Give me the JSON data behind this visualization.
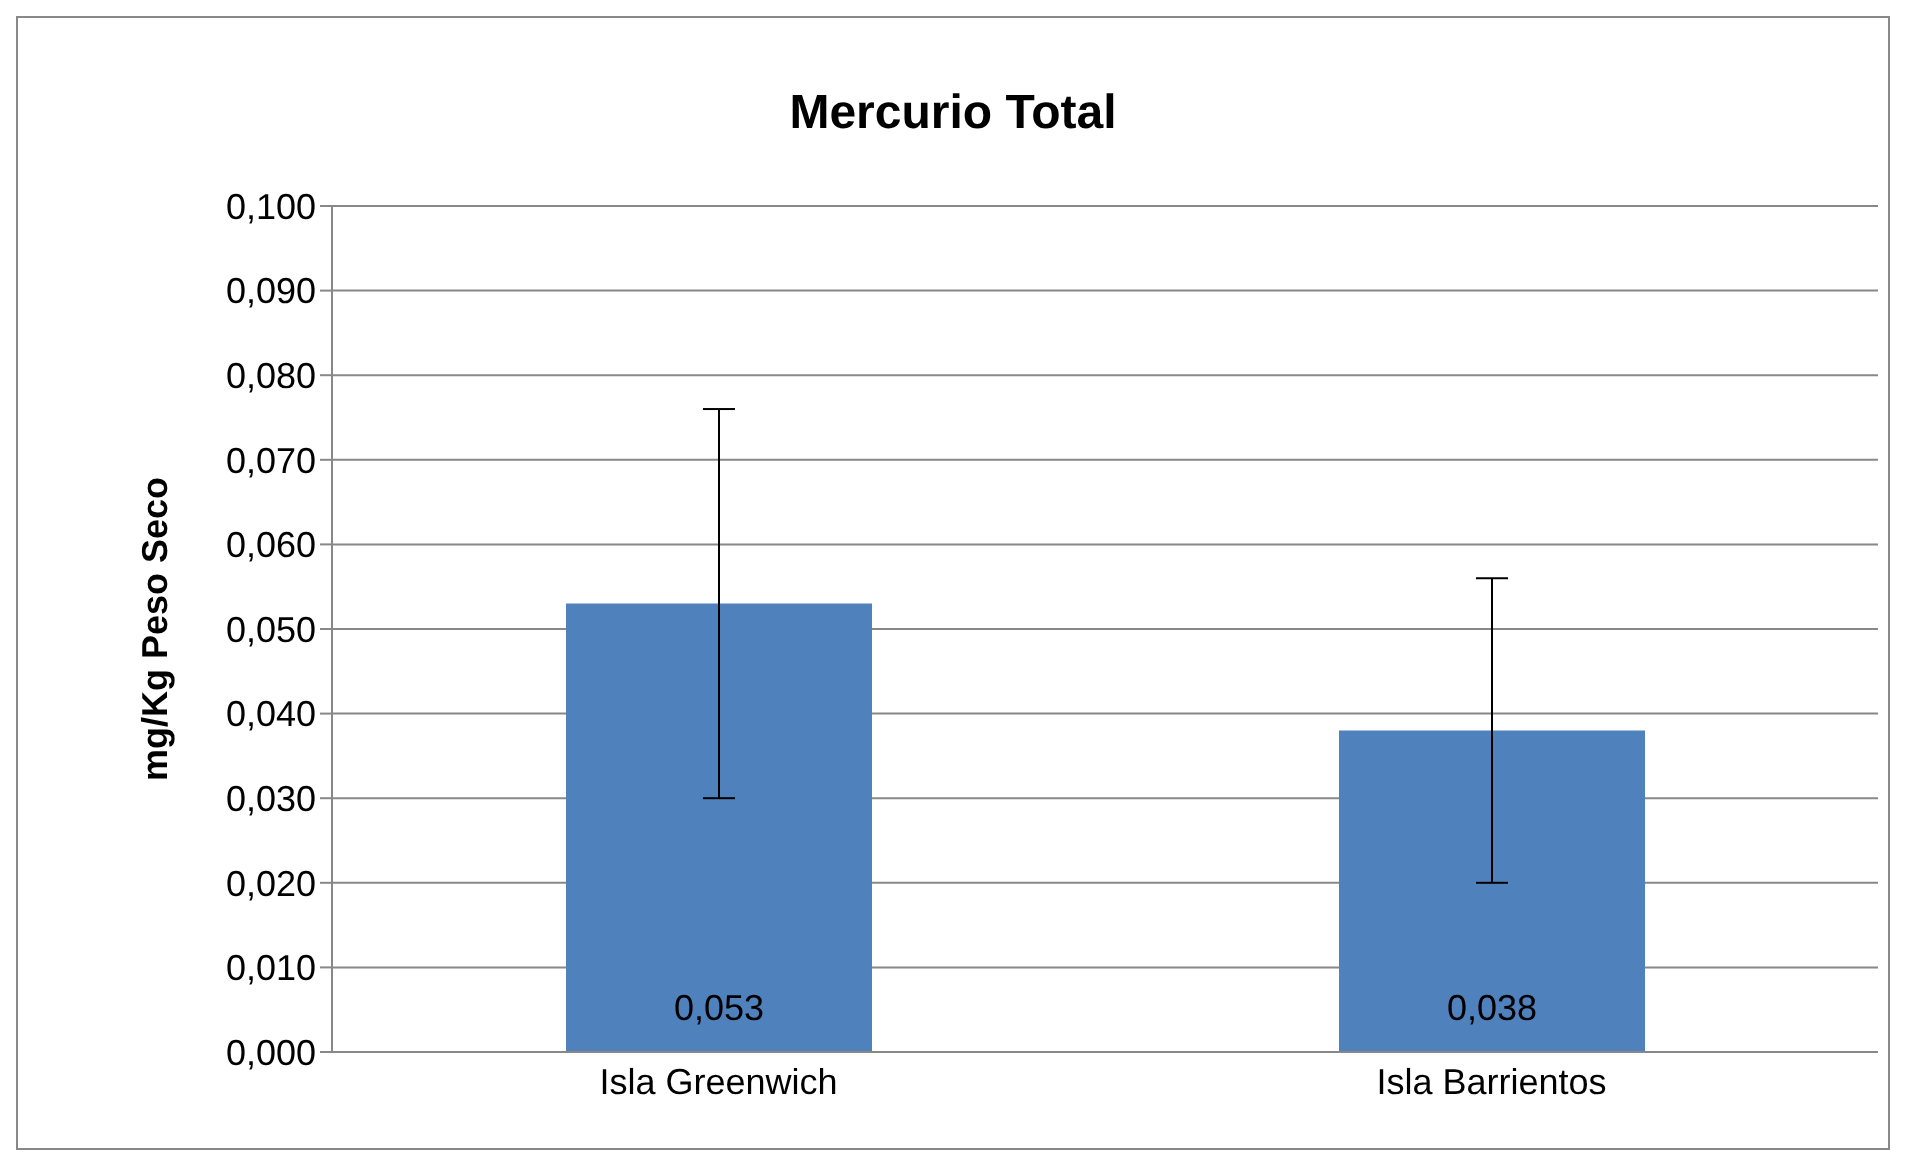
{
  "chart_data": {
    "type": "bar",
    "title": "Mercurio Total",
    "ylabel": "mg/Kg  Peso Seco",
    "categories": [
      "Isla Greenwich",
      "Isla Barrientos"
    ],
    "values": [
      0.053,
      0.038
    ],
    "errors": [
      [
        0.03,
        0.076
      ],
      [
        0.02,
        0.056
      ]
    ],
    "value_labels": [
      "0,053",
      "0,038"
    ],
    "color": "#4f81bd",
    "ylim": [
      0,
      0.1
    ],
    "yticks": [
      {
        "value": 0,
        "label": "0,000"
      },
      {
        "value": 0.01,
        "label": "0,010"
      },
      {
        "value": 0.02,
        "label": "0,020"
      },
      {
        "value": 0.03,
        "label": "0,030"
      },
      {
        "value": 0.04,
        "label": "0,040"
      },
      {
        "value": 0.05,
        "label": "0,050"
      },
      {
        "value": 0.06,
        "label": "0,060"
      },
      {
        "value": 0.07,
        "label": "0,070"
      },
      {
        "value": 0.08,
        "label": "0,080"
      },
      {
        "value": 0.09,
        "label": "0,090"
      },
      {
        "value": 0.1,
        "label": "0,100"
      }
    ],
    "grid": "y",
    "legend": false
  }
}
